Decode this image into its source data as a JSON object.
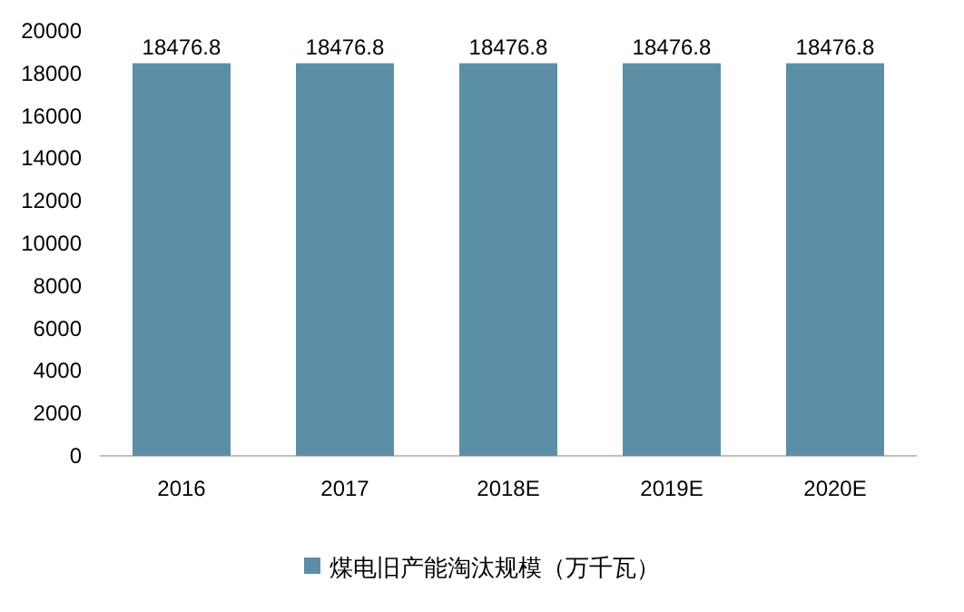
{
  "chart_data": {
    "type": "bar",
    "categories": [
      "2016",
      "2017",
      "2018E",
      "2019E",
      "2020E"
    ],
    "series": [
      {
        "name": "煤电旧产能淘汰规模（万千瓦）",
        "color": "#5b8fa7",
        "values": [
          18476.8,
          18476.8,
          18476.8,
          18476.8,
          18476.8
        ]
      }
    ],
    "ylim": [
      0,
      20000
    ],
    "yticks": [
      0,
      2000,
      4000,
      6000,
      8000,
      10000,
      12000,
      14000,
      16000,
      18000,
      20000
    ],
    "data_labels": true,
    "legend": "bottom",
    "grid": false
  }
}
